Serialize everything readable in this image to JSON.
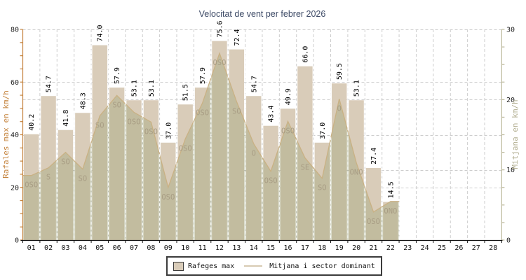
{
  "title": "Velocitat de vent per febrer 2026",
  "title_color": "#3d4a66",
  "chart_data": {
    "type": "bar",
    "combo_note": "bars on left axis + area line with wind sector labels on right axis",
    "categories": [
      "01",
      "02",
      "03",
      "04",
      "05",
      "06",
      "07",
      "08",
      "09",
      "10",
      "11",
      "12",
      "13",
      "14",
      "15",
      "16",
      "17",
      "18",
      "19",
      "20",
      "21",
      "22",
      "23",
      "24",
      "25",
      "26",
      "27",
      "28"
    ],
    "series": [
      {
        "name": "Rafeges max",
        "type": "bar",
        "axis": "left",
        "color": "#d9ccb9",
        "values": [
          40.2,
          54.7,
          41.8,
          48.3,
          74.0,
          57.9,
          53.1,
          53.1,
          37.0,
          51.5,
          57.9,
          75.6,
          72.4,
          54.7,
          43.4,
          49.9,
          66.0,
          37.0,
          59.5,
          53.1,
          27.4,
          14.5,
          null,
          null,
          null,
          null,
          null,
          null
        ]
      },
      {
        "name": "Mitjana i sector dominant",
        "type": "area-line",
        "axis": "right",
        "line_color": "#c9b184",
        "area_color": "rgba(151,159,113,0.35)",
        "sector_color": "#a89d84",
        "values": [
          9.2,
          10.3,
          12.5,
          10.1,
          17.7,
          20.6,
          18.2,
          16.8,
          7.5,
          14.4,
          19.5,
          26.6,
          19.7,
          13.7,
          9.8,
          16.9,
          11.7,
          8.8,
          20.1,
          11.0,
          4.0,
          5.5,
          null,
          null,
          null,
          null,
          null,
          null
        ],
        "sectors": [
          "OSO",
          "S",
          "SO",
          "SO",
          "SO",
          "SO",
          "OSO",
          "OSO",
          "OSO",
          "OSO",
          "OSO",
          "OSO",
          "SO",
          "O",
          "OSO",
          "OSO",
          "SE",
          "SO",
          "O",
          "ONO",
          "OSO",
          "ONO",
          null,
          null,
          null,
          null,
          null,
          null
        ]
      }
    ],
    "left_axis": {
      "label": "Rafales max en km/h",
      "min": 0,
      "max": 80,
      "major_ticks": [
        0,
        20,
        40,
        60,
        80
      ],
      "minor_step": 5,
      "color": "#c5843e",
      "number_color": "#1c1c1c"
    },
    "right_axis": {
      "label": "Mitjana en km/h",
      "min": 0,
      "max": 30,
      "major_ticks": [
        0,
        10,
        20,
        30
      ],
      "minor_step": 2.5,
      "color": "#bcb99c",
      "label_color": "#b3af92",
      "number_color": "#1c1c1c"
    },
    "x_axis": {
      "color": "#111111"
    },
    "grid_color": "#cdcdcd",
    "legend": [
      {
        "label": "Rafeges max",
        "swatch": "bar"
      },
      {
        "label": "Mitjana i sector dominant",
        "swatch": "line"
      }
    ]
  }
}
